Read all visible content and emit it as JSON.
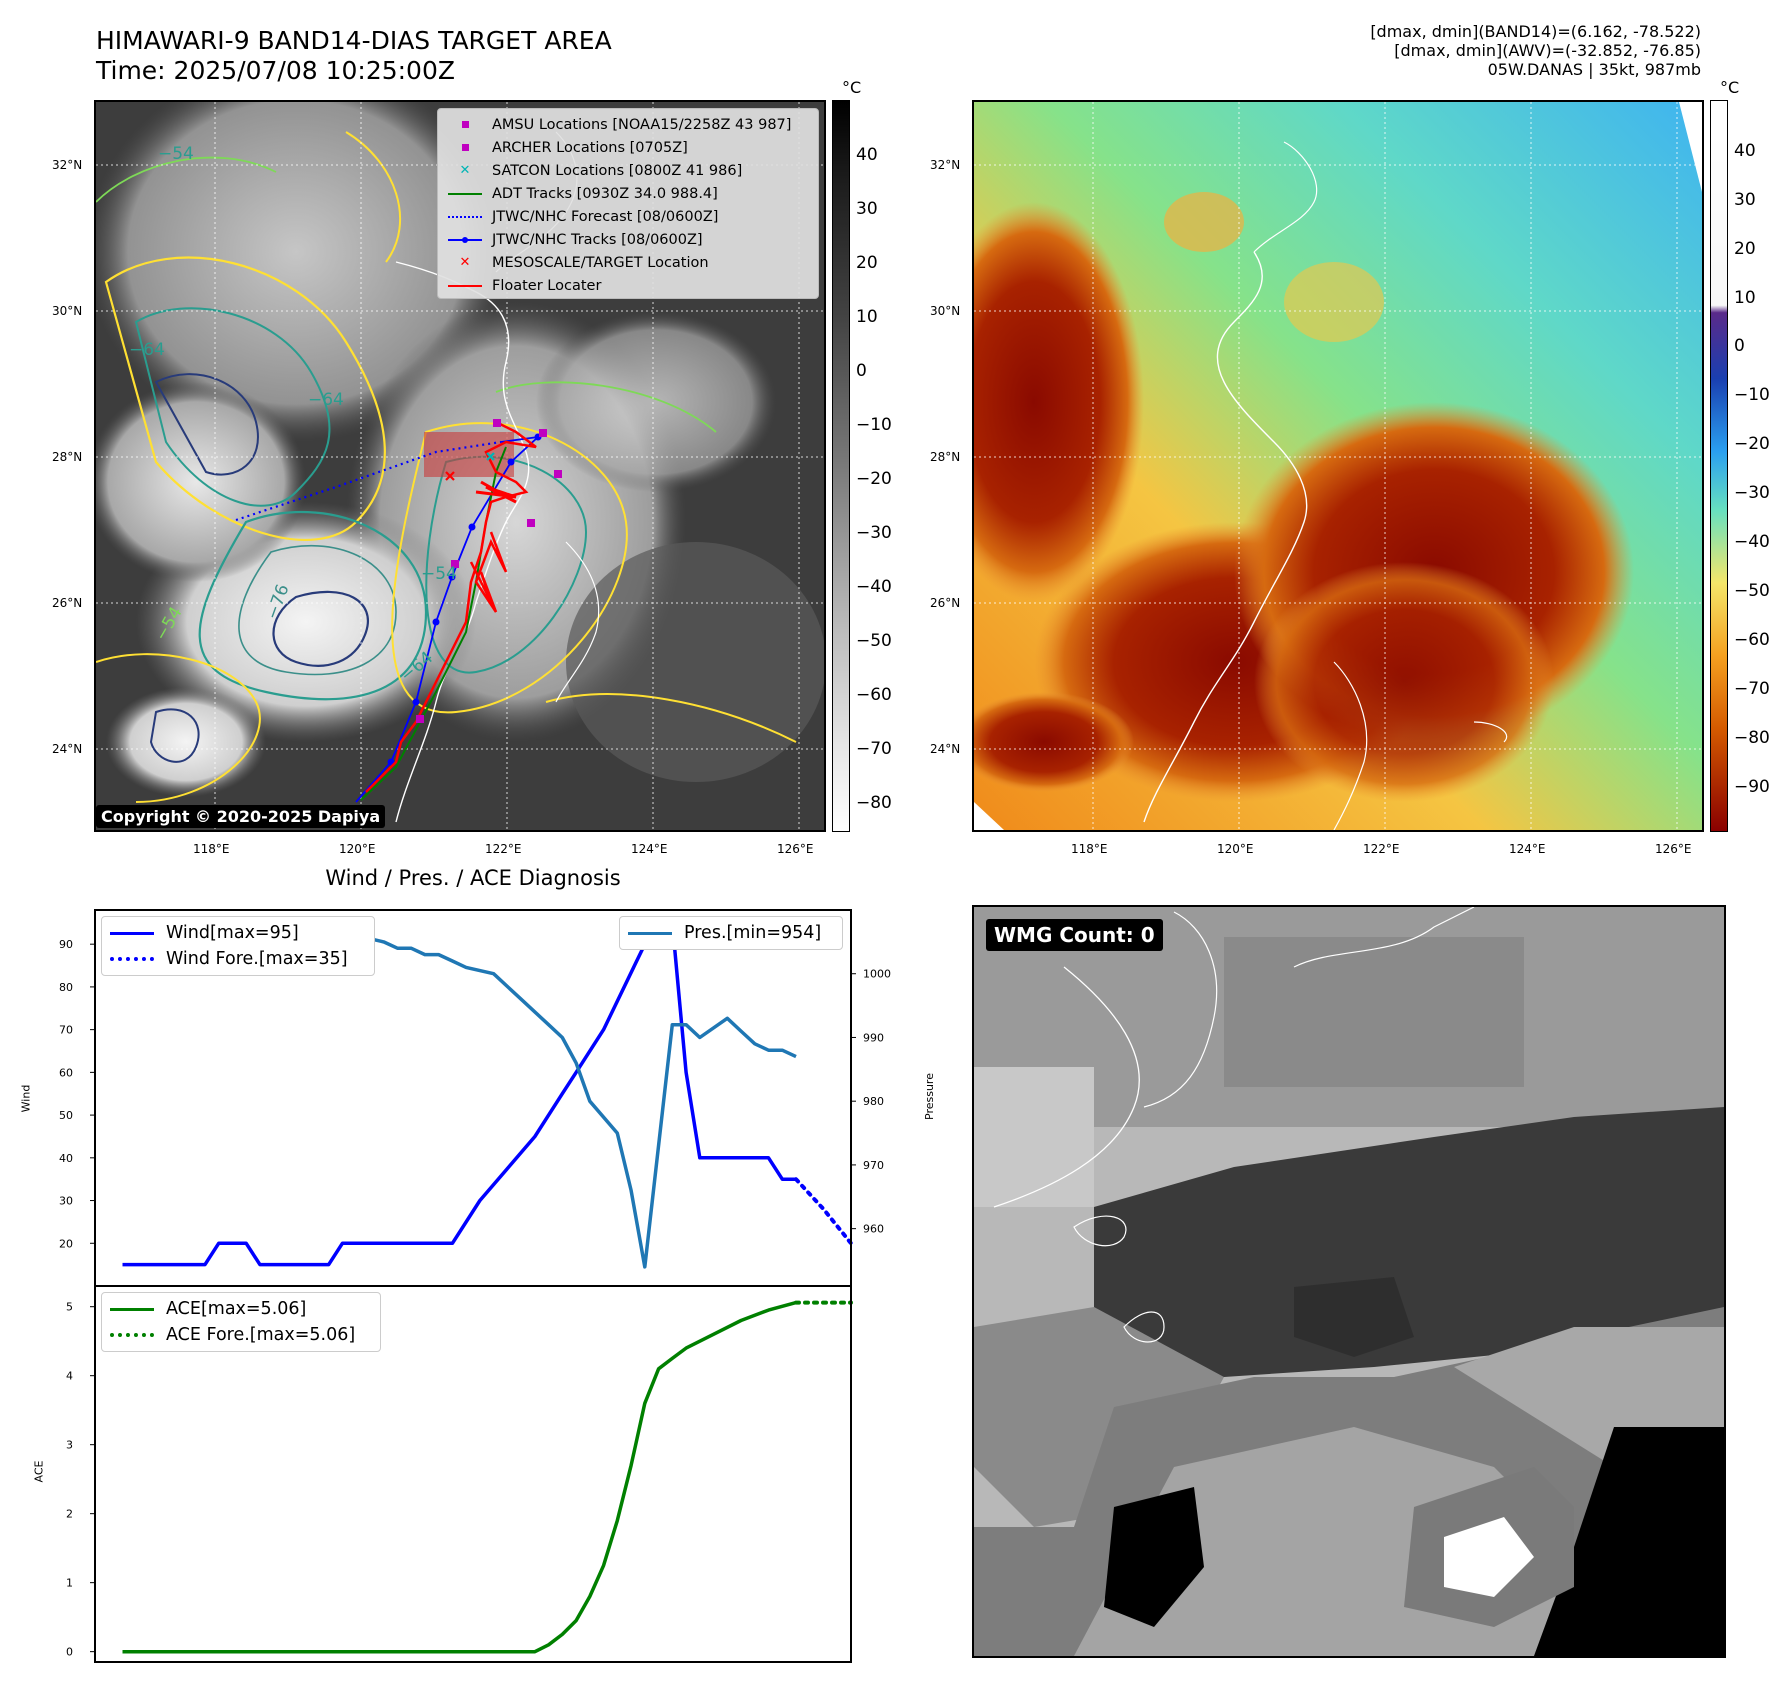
{
  "header": {
    "title_line1": "HIMAWARI-9 BAND14-DIAS TARGET AREA",
    "title_line2": "Time: 2025/07/08 10:25:00Z",
    "info_line1": "[dmax, dmin](BAND14)=(6.162, -78.522)",
    "info_line2": "[dmax, dmin](AWV)=(-32.852, -76.85)",
    "info_line3": "05W.DANAS | 35kt, 987mb"
  },
  "map_axes": {
    "lat_labels": [
      "32°N",
      "30°N",
      "28°N",
      "26°N",
      "24°N"
    ],
    "lon_labels": [
      "118°E",
      "120°E",
      "122°E",
      "124°E",
      "126°E"
    ]
  },
  "ir_colorbar": {
    "unit": "°C",
    "ticks": [
      "40",
      "30",
      "20",
      "10",
      "0",
      "−10",
      "−20",
      "−30",
      "−40",
      "−50",
      "−60",
      "−70",
      "−80"
    ]
  },
  "wv_colorbar": {
    "unit": "°C",
    "ticks": [
      "40",
      "30",
      "20",
      "10",
      "0",
      "−10",
      "−20",
      "−30",
      "−40",
      "−50",
      "−60",
      "−70",
      "−80",
      "−90"
    ]
  },
  "contour_labels": [
    "−64",
    "−76",
    "−54",
    "−64",
    "−54",
    "−64",
    "−54"
  ],
  "map_legend": [
    {
      "label": "AMSU Locations [NOAA15/2258Z 43 987]",
      "symbol": "square",
      "color": "#c000c0"
    },
    {
      "label": "ARCHER Locations [0705Z]",
      "symbol": "square",
      "color": "#c000c0"
    },
    {
      "label": "SATCON Locations [0800Z 41 986]",
      "symbol": "x",
      "color": "#00b5b5"
    },
    {
      "label": "ADT Tracks [0930Z 34.0 988.4]",
      "symbol": "line",
      "color": "#008000"
    },
    {
      "label": "JTWC/NHC Forecast [08/0600Z]",
      "symbol": "dotted",
      "color": "#0000ff"
    },
    {
      "label": "JTWC/NHC Tracks [08/0600Z]",
      "symbol": "line-dot",
      "color": "#0000ff"
    },
    {
      "label": "MESOSCALE/TARGET Location",
      "symbol": "x",
      "color": "#ff0000"
    },
    {
      "label": "Floater Locater",
      "symbol": "line",
      "color": "#ff0000"
    }
  ],
  "copyright": "Copyright © 2020-2025 Dapiya",
  "diag_title": "Wind / Pres. / ACE Diagnosis",
  "wmg_label": "WMG Count: 0",
  "wind_legend": {
    "wind": "Wind[max=95]",
    "wind_fore": "Wind Fore.[max=35]",
    "pres": "Pres.[min=954]"
  },
  "ace_legend": {
    "ace": "ACE[max=5.06]",
    "ace_fore": "ACE Fore.[max=5.06]"
  },
  "chart_data": [
    {
      "type": "line",
      "ylabel": "Wind",
      "y2label": "Pressure",
      "ylim": [
        10,
        98
      ],
      "y2lim": [
        951,
        1010
      ],
      "yticks": [
        20,
        30,
        40,
        50,
        60,
        70,
        80,
        90
      ],
      "y2ticks": [
        960,
        970,
        980,
        990,
        1000
      ],
      "xlim": [
        0,
        55
      ],
      "series": [
        {
          "name": "Wind[max=95]",
          "axis": "left",
          "color": "#0000ff",
          "style": "solid",
          "x": [
            2,
            8,
            9,
            11,
            12,
            14,
            17,
            18,
            21,
            26,
            28,
            32,
            34,
            35,
            37,
            40,
            42,
            43,
            44,
            45,
            49,
            50,
            51
          ],
          "y": [
            15,
            15,
            20,
            20,
            15,
            15,
            15,
            20,
            20,
            20,
            30,
            45,
            55,
            60,
            70,
            90,
            95,
            60,
            40,
            40,
            40,
            35,
            35
          ]
        },
        {
          "name": "Wind Fore.[max=35]",
          "axis": "left",
          "color": "#0000ff",
          "style": "dotted",
          "x": [
            51,
            53,
            55
          ],
          "y": [
            35,
            28,
            20
          ]
        },
        {
          "name": "Pres.[min=954]",
          "axis": "right",
          "color": "#1f77b4",
          "style": "solid",
          "x": [
            2,
            6,
            8,
            9,
            11,
            14,
            15,
            16,
            17,
            18,
            19,
            21,
            22,
            23,
            24,
            25,
            26,
            27,
            29,
            30,
            31,
            33,
            34,
            35,
            36,
            38,
            39,
            40,
            42,
            43,
            44,
            46,
            47,
            48,
            49,
            50,
            51
          ],
          "y": [
            1007,
            1007,
            1006,
            1005,
            1005,
            1005,
            1006,
            1006,
            1005,
            1006,
            1006,
            1005,
            1004,
            1004,
            1003,
            1003,
            1002,
            1001,
            1000,
            998,
            996,
            992,
            990,
            986,
            980,
            975,
            966,
            954,
            992,
            992,
            990,
            993,
            991,
            989,
            988,
            988,
            987
          ]
        }
      ]
    },
    {
      "type": "line",
      "ylabel": "ACE",
      "ylim": [
        -0.15,
        5.3
      ],
      "yticks": [
        0,
        1,
        2,
        3,
        4,
        5
      ],
      "xlim": [
        0,
        55
      ],
      "series": [
        {
          "name": "ACE[max=5.06]",
          "color": "#008000",
          "style": "solid",
          "x": [
            2,
            32,
            33,
            34,
            35,
            36,
            37,
            38,
            39,
            40,
            41,
            42,
            43,
            45,
            47,
            49,
            51
          ],
          "y": [
            0,
            0,
            0.1,
            0.25,
            0.45,
            0.8,
            1.25,
            1.9,
            2.7,
            3.6,
            4.1,
            4.25,
            4.4,
            4.6,
            4.8,
            4.95,
            5.06
          ]
        },
        {
          "name": "ACE Fore.[max=5.06]",
          "color": "#008000",
          "style": "dotted",
          "x": [
            51,
            55
          ],
          "y": [
            5.06,
            5.06
          ]
        }
      ]
    }
  ]
}
